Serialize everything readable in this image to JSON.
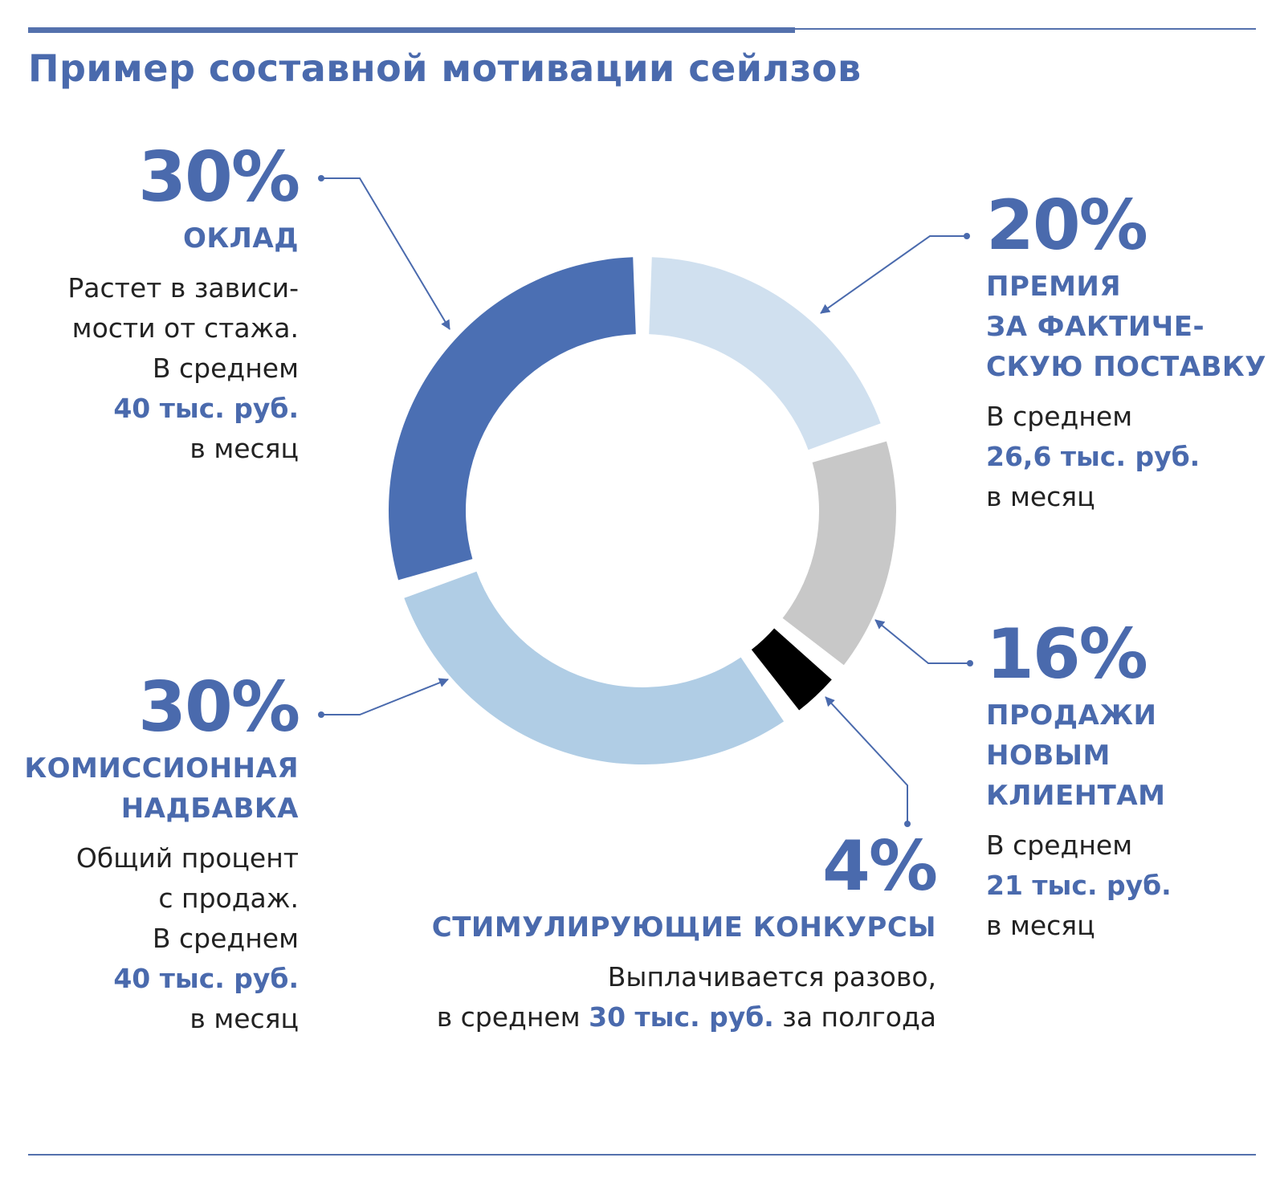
{
  "title": "Пример составной мотивации сейлзов",
  "colors": {
    "accent": "#4a6aad",
    "slice_salary": "#4b6fb3",
    "slice_premium": "#d0e0ef",
    "slice_new_clients": "#c8c8c8",
    "slice_contests": "#000000",
    "slice_commission": "#b0cde5"
  },
  "chart_data": {
    "type": "pie",
    "style": "donut",
    "start": "top, clockwise",
    "slices": [
      {
        "key": "premium",
        "label": "ПРЕМИЯ ЗА ФАКТИЧЕСКУЮ ПОСТАВКУ",
        "value": 20,
        "color": "#d0e0ef"
      },
      {
        "key": "new_clients",
        "label": "ПРОДАЖИ НОВЫМ КЛИЕНТАМ",
        "value": 16,
        "color": "#c8c8c8"
      },
      {
        "key": "contests",
        "label": "СТИМУЛИРУЮЩИЕ КОНКУРСЫ",
        "value": 4,
        "color": "#000000"
      },
      {
        "key": "commission",
        "label": "КОМИССИОННАЯ НАДБАВКА",
        "value": 30,
        "color": "#b0cde5"
      },
      {
        "key": "salary",
        "label": "ОКЛАД",
        "value": 30,
        "color": "#4b6fb3"
      }
    ]
  },
  "blocks": {
    "salary": {
      "pct": "30%",
      "cat": [
        "ОКЛАД"
      ],
      "desc1": "Растет в зависи-",
      "desc2": "мости от стажа.",
      "desc3": "В среднем",
      "amount": "40 тыс. руб.",
      "desc4": "в месяц"
    },
    "premium": {
      "pct": "20%",
      "cat": [
        "ПРЕМИЯ",
        "ЗА ФАКТИЧЕ-",
        "СКУЮ ПОСТАВКУ"
      ],
      "desc1": "В среднем",
      "amount": "26,6 тыс. руб.",
      "desc2": "в месяц"
    },
    "new_clients": {
      "pct": "16%",
      "cat": [
        "ПРОДАЖИ",
        "НОВЫМ",
        "КЛИЕНТАМ"
      ],
      "desc1": "В среднем",
      "amount": "21 тыс. руб.",
      "desc2": "в месяц"
    },
    "contests": {
      "pct": "4%",
      "cat": [
        "СТИМУЛИРУЮЩИЕ КОНКУРСЫ"
      ],
      "desc1": "Выплачивается разово,",
      "desc2_pre": "в среднем ",
      "amount": "30 тыс. руб.",
      "desc2_post": " за полгода"
    },
    "commission": {
      "pct": "30%",
      "cat": [
        "КОМИССИОННАЯ",
        "НАДБАВКА"
      ],
      "desc1": "Общий процент",
      "desc2": "с продаж.",
      "desc3": "В среднем",
      "amount": "40 тыс. руб.",
      "desc4": "в месяц"
    }
  }
}
